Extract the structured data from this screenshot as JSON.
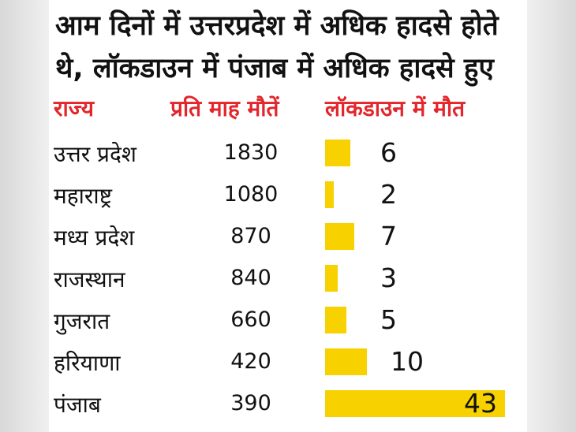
{
  "title": "आम दिनों में उत्तरप्रदेश में अधिक हादसे होते थे, लॉकडाउन में पंजाब में अधिक हादसे हुए",
  "headers": {
    "state": "राज्य",
    "monthly": "प्रति माह मौतें",
    "lockdown": "लॉकडाउन में मौत"
  },
  "colors": {
    "header": "#e3262b",
    "bar": "#f8d100",
    "text": "#111111"
  },
  "chart_data": {
    "type": "bar",
    "orientation": "horizontal",
    "title": "आम दिनों में उत्तरप्रदेश में अधिक हादसे होते थे, लॉकडाउन में पंजाब में अधिक हादसे हुए",
    "categories": [
      "उत्तर प्रदेश",
      "महाराष्ट्र",
      "मध्य प्रदेश",
      "राजस्थान",
      "गुजरात",
      "हरियाणा",
      "पंजाब"
    ],
    "monthly_deaths": [
      "1830",
      "1080",
      "870",
      "840",
      "660",
      "420",
      "390"
    ],
    "values": [
      6,
      2,
      7,
      3,
      5,
      10,
      43
    ],
    "xlim": [
      0,
      43
    ],
    "grid": false,
    "legend": "none"
  }
}
